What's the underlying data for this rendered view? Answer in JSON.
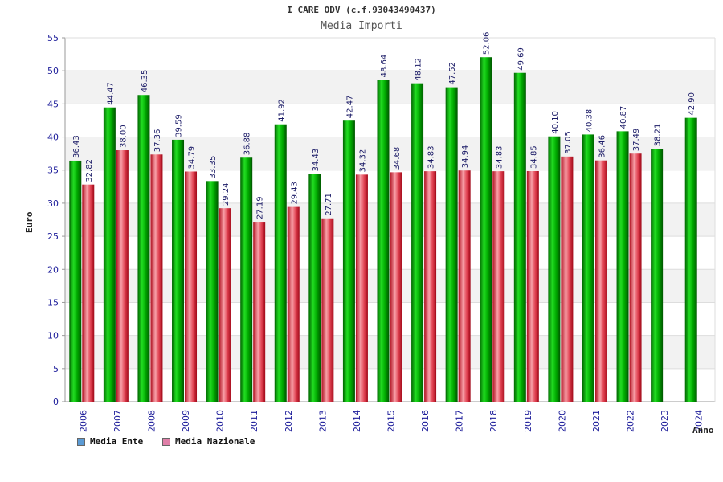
{
  "chart_data": {
    "type": "bar",
    "title": "I CARE ODV (c.f.93043490437)",
    "subtitle": "Media Importi",
    "xlabel": "Anno",
    "ylabel": "Euro",
    "ylim": [
      0,
      55
    ],
    "yticks": [
      0,
      5,
      10,
      15,
      20,
      25,
      30,
      35,
      40,
      45,
      50,
      55
    ],
    "categories": [
      "2006",
      "2007",
      "2008",
      "2009",
      "2010",
      "2011",
      "2012",
      "2013",
      "2014",
      "2015",
      "2016",
      "2017",
      "2018",
      "2019",
      "2020",
      "2021",
      "2022",
      "2023",
      "2024"
    ],
    "series": [
      {
        "name": "Media Ente",
        "color": "#00b000",
        "values": [
          36.43,
          44.47,
          46.35,
          39.59,
          33.35,
          36.88,
          41.92,
          34.43,
          42.47,
          48.64,
          48.12,
          47.52,
          52.06,
          49.69,
          40.1,
          40.38,
          40.87,
          38.21,
          42.9
        ],
        "labels": [
          "36.43",
          "44.47",
          "46.35",
          "39.59",
          "33.35",
          "36.88",
          "41.92",
          "34.43",
          "42.47",
          "48.64",
          "48.12",
          "47.52",
          "52.06",
          "49.69",
          "40.10",
          "40.38",
          "40.87",
          "38.21",
          "42.90"
        ]
      },
      {
        "name": "Media Nazionale",
        "color": "#e0404a",
        "values": [
          32.82,
          38.0,
          37.36,
          34.79,
          29.24,
          27.19,
          29.43,
          27.71,
          34.32,
          34.68,
          34.83,
          34.94,
          34.83,
          34.85,
          37.05,
          36.46,
          37.49,
          null,
          null
        ],
        "labels": [
          "32.82",
          "38.00",
          "37.36",
          "34.79",
          "29.24",
          "27.19",
          "29.43",
          "27.71",
          "34.32",
          "34.68",
          "34.83",
          "34.94",
          "34.83",
          "34.85",
          "37.05",
          "36.46",
          "37.49",
          null,
          null
        ]
      }
    ],
    "legend": {
      "position": "bottom-left",
      "items": [
        {
          "label": "Media Ente",
          "color": "#5b9bd5"
        },
        {
          "label": "Media Nazionale",
          "color": "#e07fa8"
        }
      ]
    },
    "grid": true
  }
}
